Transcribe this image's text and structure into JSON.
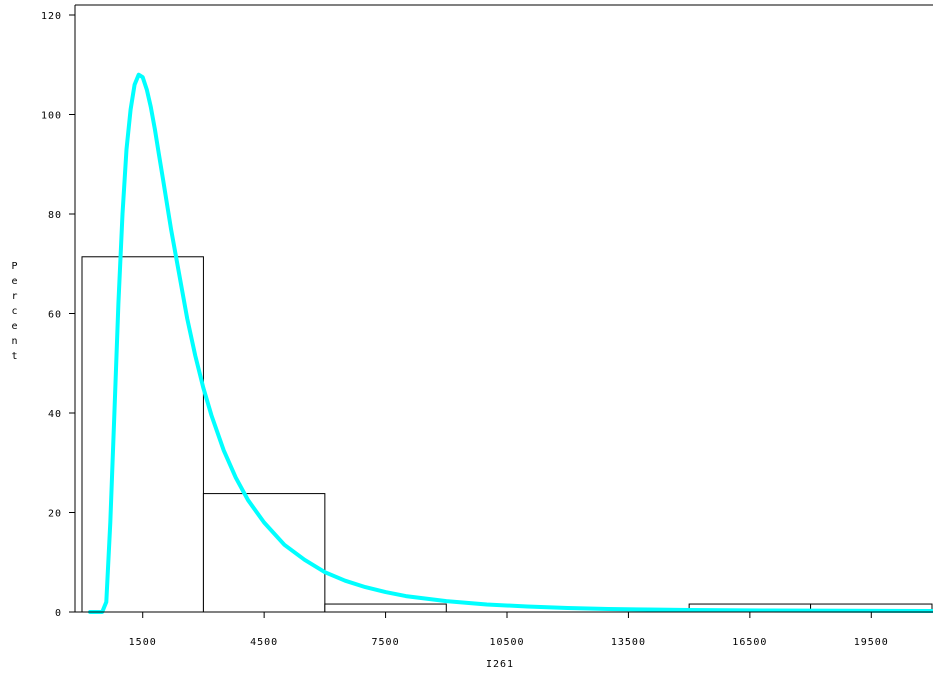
{
  "chart_data": {
    "type": "bar",
    "xlabel": "I261",
    "ylabel": "Percent",
    "xlim": [
      0,
      21000
    ],
    "ylim": [
      0,
      120
    ],
    "x_ticks": [
      1500,
      4500,
      7500,
      10500,
      13500,
      16500,
      19500
    ],
    "y_ticks": [
      0,
      20,
      40,
      60,
      80,
      100,
      120
    ],
    "bins": [
      {
        "start": 0,
        "end": 3000,
        "value": 71.4
      },
      {
        "start": 3000,
        "end": 6000,
        "value": 23.8
      },
      {
        "start": 6000,
        "end": 9000,
        "value": 1.6
      },
      {
        "start": 15000,
        "end": 18000,
        "value": 1.6
      },
      {
        "start": 18000,
        "end": 21000,
        "value": 1.6
      }
    ],
    "density_curve": {
      "x": [
        200,
        500,
        600,
        700,
        800,
        900,
        1000,
        1100,
        1200,
        1300,
        1400,
        1500,
        1600,
        1700,
        1800,
        1900,
        2000,
        2200,
        2400,
        2600,
        2800,
        3000,
        3200,
        3500,
        3800,
        4100,
        4500,
        5000,
        5500,
        6000,
        6500,
        7000,
        7500,
        8000,
        9000,
        10000,
        11000,
        12000,
        13000,
        14000,
        15000,
        17000,
        21000
      ],
      "y": [
        0,
        0,
        2,
        18,
        40,
        62,
        80,
        93,
        101,
        106,
        108,
        107.5,
        105,
        101.5,
        97,
        92,
        87,
        77,
        68,
        59,
        51.5,
        45,
        39.5,
        32.5,
        27,
        22.5,
        18,
        13.5,
        10.5,
        8,
        6.3,
        5,
        4,
        3.2,
        2.2,
        1.5,
        1.1,
        0.8,
        0.6,
        0.5,
        0.4,
        0.3,
        0.2
      ],
      "color": "#00FFFF"
    },
    "bar_fill": "#FFFFFF",
    "bar_stroke": "#000000",
    "grid": false,
    "legend": false
  }
}
